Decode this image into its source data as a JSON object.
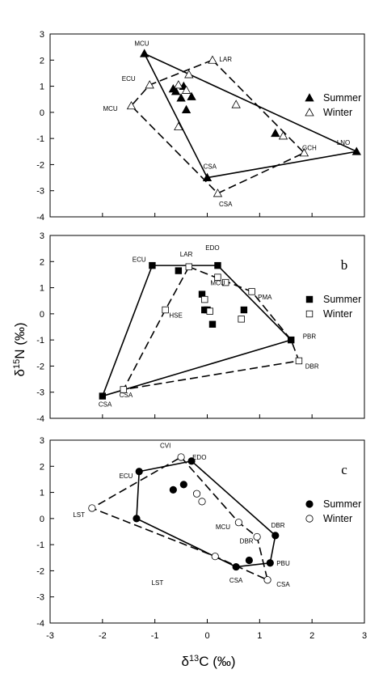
{
  "ylabel_main": "δ",
  "ylabel_sup": "15",
  "ylabel_rest": "N (‰)",
  "xlabel_main": "δ",
  "xlabel_sup": "13",
  "xlabel_rest": "C (‰)",
  "x_ticks": [
    "-3",
    "-2",
    "-1",
    "0",
    "1",
    "2",
    "3"
  ],
  "y_ticks": [
    "-4",
    "-3",
    "-2",
    "-1",
    "0",
    "1",
    "2",
    "3"
  ],
  "chart_data": [
    {
      "type": "scatter",
      "panel": "a",
      "letter": "",
      "xlim": [
        -3,
        3
      ],
      "ylim": [
        -4,
        3
      ],
      "marker": "triangle",
      "legend_position": "right",
      "legend": [
        {
          "label": "Summer",
          "filled": true
        },
        {
          "label": "Winter",
          "filled": false
        }
      ],
      "series": [
        {
          "name": "Summer",
          "filled": true,
          "points": [
            [
              -1.2,
              2.25
            ],
            [
              -0.45,
              1.0
            ],
            [
              -0.6,
              0.8
            ],
            [
              -0.5,
              0.55
            ],
            [
              -0.3,
              0.6
            ],
            [
              -0.65,
              0.9
            ],
            [
              -0.4,
              0.1
            ],
            [
              0.0,
              -2.5
            ],
            [
              1.3,
              -0.8
            ],
            [
              2.85,
              -1.5
            ]
          ],
          "hull": [
            [
              -1.2,
              2.25
            ],
            [
              2.85,
              -1.5
            ],
            [
              0.0,
              -2.5
            ],
            [
              -1.2,
              2.25
            ]
          ]
        },
        {
          "name": "Winter",
          "filled": false,
          "points": [
            [
              -0.35,
              1.45
            ],
            [
              0.1,
              2.0
            ],
            [
              -1.1,
              1.05
            ],
            [
              -1.45,
              0.25
            ],
            [
              -0.55,
              1.05
            ],
            [
              -0.4,
              0.85
            ],
            [
              0.55,
              0.3
            ],
            [
              1.45,
              -0.9
            ],
            [
              1.85,
              -1.55
            ],
            [
              -0.55,
              -0.55
            ],
            [
              0.2,
              -3.1
            ]
          ],
          "hull": [
            [
              0.1,
              2.0
            ],
            [
              -1.1,
              1.05
            ],
            [
              -1.45,
              0.25
            ],
            [
              0.2,
              -3.1
            ],
            [
              1.85,
              -1.55
            ],
            [
              0.1,
              2.0
            ]
          ]
        }
      ],
      "labels": [
        {
          "text": "MCU",
          "x": -1.25,
          "y": 2.55
        },
        {
          "text": "LAR",
          "x": 0.35,
          "y": 1.95
        },
        {
          "text": "ECU",
          "x": -1.5,
          "y": 1.2
        },
        {
          "text": "MCU",
          "x": -1.85,
          "y": 0.05
        },
        {
          "text": "CSA",
          "x": 0.05,
          "y": -2.15
        },
        {
          "text": "CSA",
          "x": 0.35,
          "y": -3.6
        },
        {
          "text": "GCH",
          "x": 1.95,
          "y": -1.45
        },
        {
          "text": "LNO",
          "x": 2.6,
          "y": -1.25
        }
      ]
    },
    {
      "type": "scatter",
      "panel": "b",
      "letter": "b",
      "xlim": [
        -3,
        3
      ],
      "ylim": [
        -4,
        3
      ],
      "marker": "square",
      "legend_position": "right",
      "legend": [
        {
          "label": "Summer",
          "filled": true
        },
        {
          "label": "Winter",
          "filled": false
        }
      ],
      "series": [
        {
          "name": "Summer",
          "filled": true,
          "points": [
            [
              -1.05,
              1.85
            ],
            [
              -0.55,
              1.65
            ],
            [
              0.2,
              1.85
            ],
            [
              -0.1,
              0.75
            ],
            [
              0.0,
              0.15
            ],
            [
              -0.05,
              0.15
            ],
            [
              0.1,
              -0.4
            ],
            [
              0.7,
              0.15
            ],
            [
              1.6,
              -1.0
            ],
            [
              -2.0,
              -3.15
            ]
          ],
          "hull": [
            [
              -1.05,
              1.85
            ],
            [
              0.2,
              1.85
            ],
            [
              1.6,
              -1.0
            ],
            [
              -2.0,
              -3.15
            ],
            [
              -1.05,
              1.85
            ]
          ]
        },
        {
          "name": "Winter",
          "filled": false,
          "points": [
            [
              -0.35,
              1.8
            ],
            [
              0.2,
              1.4
            ],
            [
              0.35,
              1.2
            ],
            [
              -0.05,
              0.55
            ],
            [
              0.05,
              0.1
            ],
            [
              0.85,
              0.85
            ],
            [
              0.65,
              -0.2
            ],
            [
              -0.8,
              0.15
            ],
            [
              1.75,
              -1.8
            ],
            [
              -1.6,
              -2.9
            ]
          ],
          "hull": [
            [
              -0.35,
              1.8
            ],
            [
              0.85,
              0.85
            ],
            [
              1.6,
              -1.0
            ],
            [
              1.75,
              -1.8
            ],
            [
              -1.6,
              -2.9
            ],
            [
              -0.8,
              0.15
            ],
            [
              -0.35,
              1.8
            ]
          ]
        }
      ],
      "labels": [
        {
          "text": "ECU",
          "x": -1.3,
          "y": 2.0
        },
        {
          "text": "LAR",
          "x": -0.4,
          "y": 2.2
        },
        {
          "text": "EDO",
          "x": 0.1,
          "y": 2.45
        },
        {
          "text": "MCU",
          "x": 0.2,
          "y": 1.1
        },
        {
          "text": "PMA",
          "x": 1.1,
          "y": 0.55
        },
        {
          "text": "HSE",
          "x": -0.6,
          "y": -0.15
        },
        {
          "text": "PBR",
          "x": 1.95,
          "y": -0.95
        },
        {
          "text": "DBR",
          "x": 2.0,
          "y": -2.1
        },
        {
          "text": "CSA",
          "x": -1.55,
          "y": -3.2
        },
        {
          "text": "CSA",
          "x": -1.95,
          "y": -3.55
        }
      ]
    },
    {
      "type": "scatter",
      "panel": "c",
      "letter": "c",
      "xlim": [
        -3,
        3
      ],
      "ylim": [
        -4,
        3
      ],
      "marker": "circle",
      "legend_position": "right",
      "legend": [
        {
          "label": "Summer",
          "filled": true
        },
        {
          "label": "Winter",
          "filled": false
        }
      ],
      "series": [
        {
          "name": "Summer",
          "filled": true,
          "points": [
            [
              -0.3,
              2.2
            ],
            [
              -1.3,
              1.8
            ],
            [
              -0.65,
              1.1
            ],
            [
              -0.45,
              1.3
            ],
            [
              -1.35,
              0.0
            ],
            [
              0.55,
              -1.85
            ],
            [
              0.8,
              -1.6
            ],
            [
              1.2,
              -1.7
            ],
            [
              1.3,
              -0.65
            ]
          ],
          "hull": [
            [
              -1.3,
              1.8
            ],
            [
              -0.3,
              2.2
            ],
            [
              1.3,
              -0.65
            ],
            [
              1.2,
              -1.7
            ],
            [
              0.55,
              -1.85
            ],
            [
              -1.35,
              0.0
            ],
            [
              -1.3,
              1.8
            ]
          ]
        },
        {
          "name": "Winter",
          "filled": false,
          "points": [
            [
              -0.5,
              2.35
            ],
            [
              -0.2,
              0.95
            ],
            [
              -0.1,
              0.65
            ],
            [
              0.6,
              -0.15
            ],
            [
              0.95,
              -0.7
            ],
            [
              0.15,
              -1.45
            ],
            [
              1.15,
              -2.35
            ],
            [
              -2.2,
              0.4
            ]
          ],
          "hull": [
            [
              -0.5,
              2.35
            ],
            [
              0.6,
              -0.15
            ],
            [
              0.95,
              -0.7
            ],
            [
              1.15,
              -2.35
            ],
            [
              0.15,
              -1.45
            ],
            [
              -2.2,
              0.4
            ],
            [
              -0.5,
              2.35
            ]
          ]
        }
      ],
      "labels": [
        {
          "text": "CVI",
          "x": -0.8,
          "y": 2.7
        },
        {
          "text": "EDO",
          "x": -0.15,
          "y": 2.25
        },
        {
          "text": "ECU",
          "x": -1.55,
          "y": 1.55
        },
        {
          "text": "LST",
          "x": -2.45,
          "y": 0.05
        },
        {
          "text": "MCU",
          "x": 0.3,
          "y": -0.4
        },
        {
          "text": "DBR",
          "x": 0.75,
          "y": -0.95
        },
        {
          "text": "DBR",
          "x": 1.35,
          "y": -0.35
        },
        {
          "text": "PBU",
          "x": 1.45,
          "y": -1.8
        },
        {
          "text": "CSA",
          "x": 1.45,
          "y": -2.6
        },
        {
          "text": "CSA",
          "x": 0.55,
          "y": -2.45
        },
        {
          "text": "LST",
          "x": -0.95,
          "y": -2.55
        }
      ]
    }
  ]
}
